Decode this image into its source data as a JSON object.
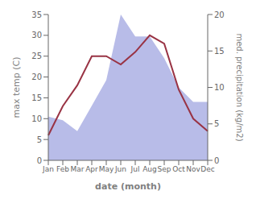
{
  "chart_data": {
    "type": "line",
    "categories": [
      "Jan",
      "Feb",
      "Mar",
      "Apr",
      "May",
      "Jun",
      "Jul",
      "Aug",
      "Sep",
      "Oct",
      "Nov",
      "Dec"
    ],
    "series": [
      {
        "type": "area",
        "color": "#b8bce8",
        "axis": "y2",
        "values": [
          6,
          5.5,
          4,
          7.5,
          11,
          20,
          17,
          17,
          14,
          10,
          8,
          8
        ]
      },
      {
        "type": "line",
        "color": "#993344",
        "values": [
          6,
          13,
          18,
          25,
          25,
          23,
          26,
          30,
          28,
          17,
          10,
          7
        ]
      }
    ],
    "xlabel": "date (month)",
    "ylabel": "max temp (C)",
    "y2label": "med. precipitation (kg/m2)",
    "ylim": [
      0,
      35
    ],
    "yticks": [
      0,
      5,
      10,
      15,
      20,
      25,
      30,
      35
    ],
    "y2lim": [
      0,
      20
    ],
    "y2ticks": [
      0,
      5,
      10,
      15,
      20
    ]
  }
}
